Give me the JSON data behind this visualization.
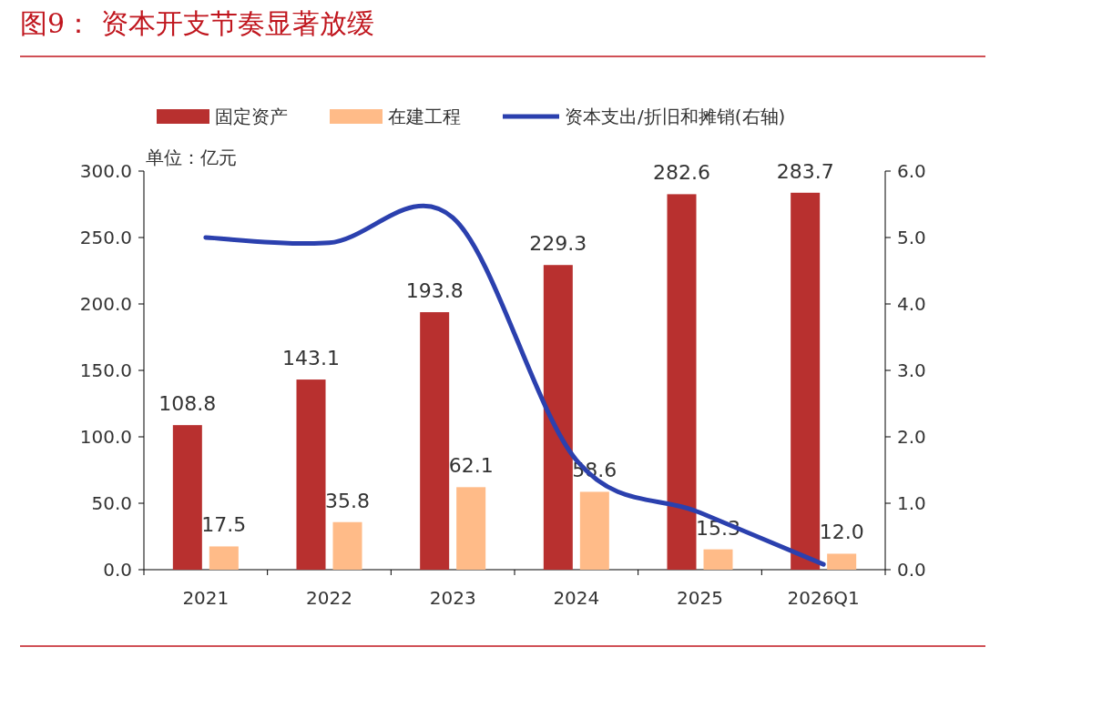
{
  "chart_data": {
    "type": "bar",
    "title": "图9：  资本开支节奏显著放缓",
    "annotations": [
      "单位：亿元"
    ],
    "categories": [
      "2021",
      "2022",
      "2023",
      "2024",
      "2025",
      "2026Q1"
    ],
    "series": [
      {
        "name": "固定资产",
        "color": "#b8302f",
        "values": [
          108.8,
          143.1,
          193.8,
          229.3,
          282.6,
          283.7
        ],
        "value_labels": [
          "108.8",
          "143.1",
          "193.8",
          "229.3",
          "282.6",
          "283.7"
        ]
      },
      {
        "name": "在建工程",
        "color": "#ffbb88",
        "values": [
          17.5,
          35.8,
          62.1,
          58.6,
          15.3,
          12.0
        ],
        "value_labels": [
          "17.5",
          "35.8",
          "62.1",
          "58.6",
          "15.3",
          "12.0"
        ]
      },
      {
        "name": "资本支出/折旧和摊销(右轴)",
        "type": "line",
        "axis": "y2",
        "color": "#2b40ae",
        "values": [
          5.0,
          4.92,
          5.3,
          1.65,
          0.86,
          0.08
        ]
      }
    ],
    "ylim": [
      0,
      300
    ],
    "yticks": [
      {
        "value": 0,
        "label": "0.0"
      },
      {
        "value": 50,
        "label": "50.0"
      },
      {
        "value": 100,
        "label": "100.0"
      },
      {
        "value": 150,
        "label": "150.0"
      },
      {
        "value": 200,
        "label": "200.0"
      },
      {
        "value": 250,
        "label": "250.0"
      },
      {
        "value": 300,
        "label": "300.0"
      }
    ],
    "y2lim": [
      0,
      6
    ],
    "y2ticks": [
      {
        "value": 0,
        "label": "0.0"
      },
      {
        "value": 1,
        "label": "1.0"
      },
      {
        "value": 2,
        "label": "2.0"
      },
      {
        "value": 3,
        "label": "3.0"
      },
      {
        "value": 4,
        "label": "4.0"
      },
      {
        "value": 5,
        "label": "5.0"
      },
      {
        "value": 6,
        "label": "6.0"
      }
    ],
    "legend": "top",
    "grid": false
  }
}
